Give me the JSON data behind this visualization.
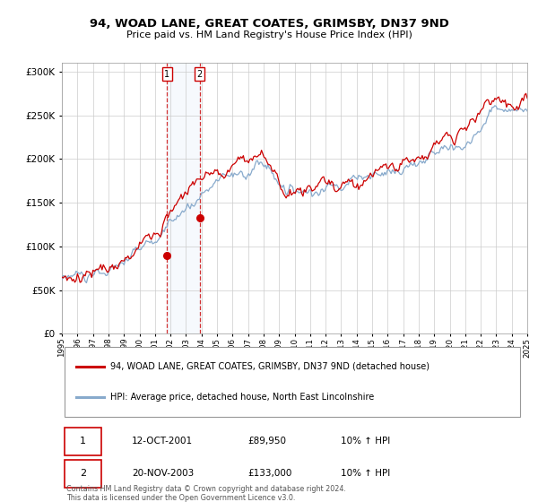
{
  "title": "94, WOAD LANE, GREAT COATES, GRIMSBY, DN37 9ND",
  "subtitle": "Price paid vs. HM Land Registry's House Price Index (HPI)",
  "legend_line1": "94, WOAD LANE, GREAT COATES, GRIMSBY, DN37 9ND (detached house)",
  "legend_line2": "HPI: Average price, detached house, North East Lincolnshire",
  "sale1_date": "12-OCT-2001",
  "sale1_price": "£89,950",
  "sale1_hpi": "10% ↑ HPI",
  "sale2_date": "20-NOV-2003",
  "sale2_price": "£133,000",
  "sale2_hpi": "10% ↑ HPI",
  "footer": "Contains HM Land Registry data © Crown copyright and database right 2024.\nThis data is licensed under the Open Government Licence v3.0.",
  "red_color": "#cc0000",
  "blue_color": "#88aacc",
  "vline_color": "#cc0000",
  "ytick_values": [
    0,
    50000,
    100000,
    150000,
    200000,
    250000,
    300000
  ],
  "ylim": [
    0,
    310000
  ],
  "background_color": "#ffffff",
  "grid_color": "#cccccc",
  "sale1_x": 2001.79,
  "sale1_y": 89950,
  "sale2_x": 2003.88,
  "sale2_y": 133000,
  "xlim_start": 1995,
  "xlim_end": 2025
}
